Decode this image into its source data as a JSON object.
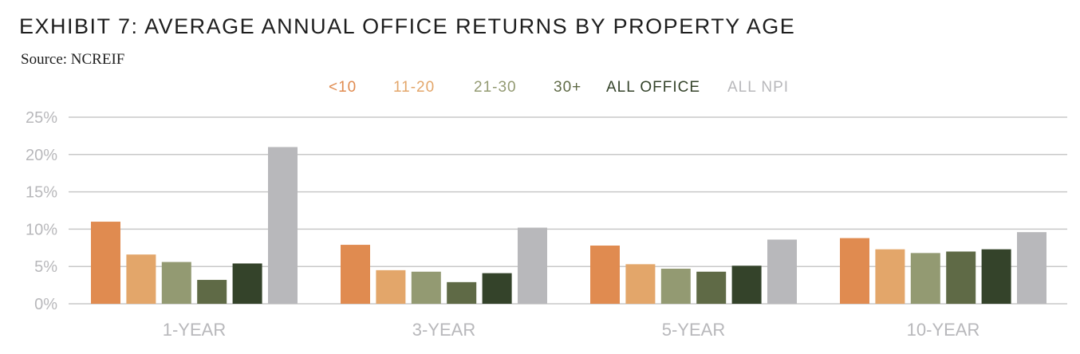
{
  "title": "EXHIBIT 7: AVERAGE ANNUAL OFFICE RETURNS BY PROPERTY AGE",
  "source": "Source: NCREIF",
  "colors": {
    "lt10": "#e08b50",
    "r11_20": "#e3a66a",
    "r21_30": "#939a72",
    "r30plus": "#5f6a46",
    "all_office": "#34432a",
    "all_npi": "#b8b8bb",
    "grid": "#c8c8c8",
    "axis_text": "#b8b8bb"
  },
  "chart_data": {
    "type": "bar",
    "categories": [
      "1-YEAR",
      "3-YEAR",
      "5-YEAR",
      "10-YEAR"
    ],
    "ylim": [
      0,
      25
    ],
    "yticks": [
      0,
      5,
      10,
      15,
      20,
      25
    ],
    "ytick_labels": [
      "0%",
      "5%",
      "10%",
      "15%",
      "20%",
      "25%"
    ],
    "grid": true,
    "legend_position": "top-center",
    "series": [
      {
        "name": "<10",
        "color": "#e08b50",
        "values": [
          11.0,
          7.9,
          7.8,
          8.8
        ]
      },
      {
        "name": "11-20",
        "color": "#e3a66a",
        "values": [
          6.6,
          4.5,
          5.3,
          7.3
        ]
      },
      {
        "name": "21-30",
        "color": "#939a72",
        "values": [
          5.6,
          4.3,
          4.7,
          6.8
        ]
      },
      {
        "name": "30+",
        "color": "#5f6a46",
        "values": [
          3.2,
          2.9,
          4.3,
          7.0
        ]
      },
      {
        "name": "ALL OFFICE",
        "color": "#34432a",
        "values": [
          5.4,
          4.1,
          5.1,
          7.3
        ]
      },
      {
        "name": "ALL NPI",
        "color": "#b8b8bb",
        "values": [
          21.0,
          10.2,
          8.6,
          9.6
        ]
      }
    ]
  }
}
